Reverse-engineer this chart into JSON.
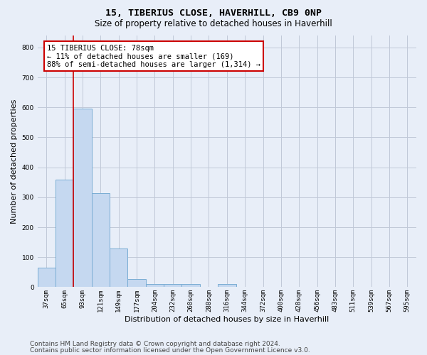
{
  "title1": "15, TIBERIUS CLOSE, HAVERHILL, CB9 0NP",
  "title2": "Size of property relative to detached houses in Haverhill",
  "xlabel": "Distribution of detached houses by size in Haverhill",
  "ylabel": "Number of detached properties",
  "categories": [
    "37sqm",
    "65sqm",
    "93sqm",
    "121sqm",
    "149sqm",
    "177sqm",
    "204sqm",
    "232sqm",
    "260sqm",
    "288sqm",
    "316sqm",
    "344sqm",
    "372sqm",
    "400sqm",
    "428sqm",
    "456sqm",
    "483sqm",
    "511sqm",
    "539sqm",
    "567sqm",
    "595sqm"
  ],
  "values": [
    65,
    360,
    595,
    315,
    128,
    28,
    10,
    10,
    10,
    0,
    10,
    0,
    0,
    0,
    0,
    0,
    0,
    0,
    0,
    0,
    0
  ],
  "bar_color": "#c5d8f0",
  "bar_edge_color": "#7aadd4",
  "property_line_x": 1.5,
  "annotation_text": "15 TIBERIUS CLOSE: 78sqm\n← 11% of detached houses are smaller (169)\n88% of semi-detached houses are larger (1,314) →",
  "annotation_box_color": "#ffffff",
  "annotation_box_edge_color": "#cc0000",
  "vline_color": "#cc0000",
  "ylim": [
    0,
    840
  ],
  "yticks": [
    0,
    100,
    200,
    300,
    400,
    500,
    600,
    700,
    800
  ],
  "grid_color": "#c0c8d8",
  "background_color": "#e8eef8",
  "footer1": "Contains HM Land Registry data © Crown copyright and database right 2024.",
  "footer2": "Contains public sector information licensed under the Open Government Licence v3.0.",
  "title1_fontsize": 9.5,
  "title2_fontsize": 8.5,
  "tick_fontsize": 6.5,
  "ylabel_fontsize": 8,
  "xlabel_fontsize": 8,
  "annotation_fontsize": 7.5,
  "footer_fontsize": 6.5
}
